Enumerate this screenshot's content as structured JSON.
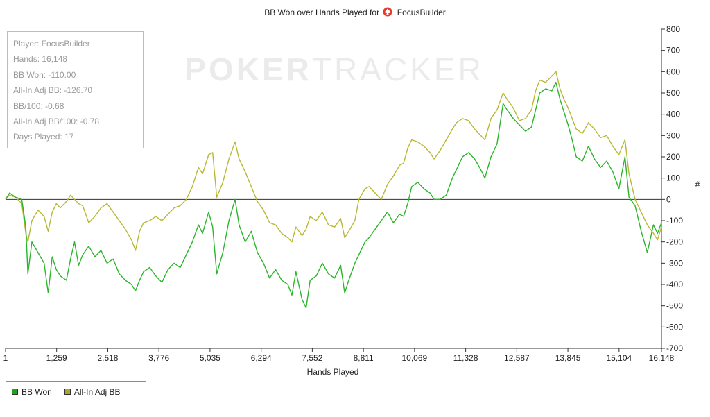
{
  "title": {
    "text": "BB Won over Hands Played for",
    "player": "FocusBuilder",
    "player_icon": "pokerstars-spade-icon"
  },
  "watermark": {
    "bold_part": "POKER",
    "light_part": "TRACKER"
  },
  "stats": [
    "Player: FocusBuilder",
    "Hands: 16,148",
    "BB Won: -110.00",
    "All-In Adj BB: -126.70",
    "BB/100: -0.68",
    "All-In Adj BB/100: -0.78",
    "Days Played: 17"
  ],
  "chart_data": {
    "type": "line",
    "title": "BB Won over Hands Played for FocusBuilder",
    "xlabel": "Hands Played",
    "ylabel": "#",
    "xlim": [
      1,
      16148
    ],
    "ylim": [
      -700,
      800
    ],
    "x_ticks": [
      1,
      1259,
      2518,
      3776,
      5035,
      6294,
      7552,
      8811,
      10069,
      11328,
      12587,
      13845,
      15104,
      16148
    ],
    "x_tick_labels": [
      "1",
      "1,259",
      "2,518",
      "3,776",
      "5,035",
      "6,294",
      "7,552",
      "8,811",
      "10,069",
      "11,328",
      "12,587",
      "13,845",
      "15,104",
      "16,148"
    ],
    "y_ticks": [
      -700,
      -600,
      -500,
      -400,
      -300,
      -200,
      -100,
      0,
      100,
      200,
      300,
      400,
      500,
      600,
      700,
      800
    ],
    "y_tick_labels": [
      "-700",
      "-600",
      "-500",
      "-400",
      "-300",
      "-200",
      "-100",
      "0",
      "100",
      "200",
      "300",
      "400",
      "500",
      "600",
      "700",
      "800"
    ],
    "y_axis_side": "right",
    "grid": false,
    "zero_line": true,
    "legend_position": "bottom-left",
    "series": [
      {
        "name": "BB Won",
        "color": "#2ab52a",
        "points": [
          [
            1,
            0
          ],
          [
            100,
            30
          ],
          [
            250,
            10
          ],
          [
            400,
            0
          ],
          [
            500,
            -130
          ],
          [
            550,
            -350
          ],
          [
            650,
            -200
          ],
          [
            800,
            -250
          ],
          [
            950,
            -300
          ],
          [
            1050,
            -440
          ],
          [
            1150,
            -270
          ],
          [
            1250,
            -330
          ],
          [
            1350,
            -360
          ],
          [
            1500,
            -380
          ],
          [
            1600,
            -280
          ],
          [
            1700,
            -200
          ],
          [
            1800,
            -310
          ],
          [
            1900,
            -260
          ],
          [
            2050,
            -220
          ],
          [
            2200,
            -270
          ],
          [
            2350,
            -240
          ],
          [
            2500,
            -300
          ],
          [
            2650,
            -280
          ],
          [
            2800,
            -350
          ],
          [
            2950,
            -380
          ],
          [
            3100,
            -400
          ],
          [
            3200,
            -430
          ],
          [
            3300,
            -380
          ],
          [
            3400,
            -340
          ],
          [
            3550,
            -320
          ],
          [
            3700,
            -360
          ],
          [
            3850,
            -390
          ],
          [
            4000,
            -330
          ],
          [
            4150,
            -300
          ],
          [
            4300,
            -320
          ],
          [
            4450,
            -260
          ],
          [
            4600,
            -200
          ],
          [
            4750,
            -120
          ],
          [
            4850,
            -160
          ],
          [
            5000,
            -60
          ],
          [
            5100,
            -130
          ],
          [
            5200,
            -350
          ],
          [
            5350,
            -250
          ],
          [
            5500,
            -100
          ],
          [
            5650,
            0
          ],
          [
            5750,
            -120
          ],
          [
            5900,
            -200
          ],
          [
            6050,
            -150
          ],
          [
            6200,
            -250
          ],
          [
            6350,
            -300
          ],
          [
            6500,
            -370
          ],
          [
            6650,
            -330
          ],
          [
            6800,
            -380
          ],
          [
            6950,
            -400
          ],
          [
            7050,
            -450
          ],
          [
            7150,
            -340
          ],
          [
            7300,
            -470
          ],
          [
            7400,
            -510
          ],
          [
            7500,
            -380
          ],
          [
            7650,
            -360
          ],
          [
            7800,
            -300
          ],
          [
            7950,
            -350
          ],
          [
            8100,
            -370
          ],
          [
            8250,
            -310
          ],
          [
            8350,
            -440
          ],
          [
            8450,
            -380
          ],
          [
            8600,
            -300
          ],
          [
            8700,
            -260
          ],
          [
            8850,
            -200
          ],
          [
            8950,
            -180
          ],
          [
            9100,
            -140
          ],
          [
            9250,
            -100
          ],
          [
            9400,
            -60
          ],
          [
            9550,
            -110
          ],
          [
            9700,
            -70
          ],
          [
            9800,
            -80
          ],
          [
            9900,
            -20
          ],
          [
            10000,
            60
          ],
          [
            10150,
            80
          ],
          [
            10300,
            50
          ],
          [
            10450,
            30
          ],
          [
            10550,
            0
          ],
          [
            10700,
            0
          ],
          [
            10850,
            20
          ],
          [
            11000,
            100
          ],
          [
            11100,
            140
          ],
          [
            11250,
            200
          ],
          [
            11400,
            220
          ],
          [
            11550,
            190
          ],
          [
            11700,
            140
          ],
          [
            11800,
            100
          ],
          [
            11950,
            200
          ],
          [
            12100,
            260
          ],
          [
            12250,
            450
          ],
          [
            12350,
            420
          ],
          [
            12500,
            380
          ],
          [
            12650,
            350
          ],
          [
            12800,
            320
          ],
          [
            12950,
            340
          ],
          [
            13050,
            420
          ],
          [
            13150,
            500
          ],
          [
            13300,
            520
          ],
          [
            13450,
            510
          ],
          [
            13550,
            550
          ],
          [
            13650,
            470
          ],
          [
            13750,
            410
          ],
          [
            13850,
            350
          ],
          [
            13950,
            280
          ],
          [
            14050,
            200
          ],
          [
            14200,
            180
          ],
          [
            14350,
            250
          ],
          [
            14500,
            190
          ],
          [
            14650,
            150
          ],
          [
            14800,
            180
          ],
          [
            14950,
            130
          ],
          [
            15100,
            50
          ],
          [
            15250,
            200
          ],
          [
            15350,
            10
          ],
          [
            15500,
            -30
          ],
          [
            15650,
            -150
          ],
          [
            15800,
            -250
          ],
          [
            15950,
            -120
          ],
          [
            16050,
            -160
          ],
          [
            16148,
            -110
          ]
        ]
      },
      {
        "name": "All-In Adj BB",
        "color": "#b8b832",
        "points": [
          [
            1,
            0
          ],
          [
            100,
            20
          ],
          [
            250,
            10
          ],
          [
            400,
            -20
          ],
          [
            500,
            -160
          ],
          [
            550,
            -200
          ],
          [
            650,
            -100
          ],
          [
            800,
            -50
          ],
          [
            950,
            -80
          ],
          [
            1050,
            -150
          ],
          [
            1150,
            -60
          ],
          [
            1250,
            -20
          ],
          [
            1350,
            -40
          ],
          [
            1500,
            -10
          ],
          [
            1600,
            20
          ],
          [
            1700,
            0
          ],
          [
            1800,
            -20
          ],
          [
            1900,
            -30
          ],
          [
            2050,
            -110
          ],
          [
            2200,
            -80
          ],
          [
            2350,
            -40
          ],
          [
            2500,
            -20
          ],
          [
            2650,
            -60
          ],
          [
            2800,
            -100
          ],
          [
            2950,
            -140
          ],
          [
            3100,
            -190
          ],
          [
            3200,
            -240
          ],
          [
            3300,
            -150
          ],
          [
            3400,
            -110
          ],
          [
            3550,
            -100
          ],
          [
            3700,
            -80
          ],
          [
            3850,
            -100
          ],
          [
            4000,
            -70
          ],
          [
            4150,
            -40
          ],
          [
            4300,
            -30
          ],
          [
            4450,
            0
          ],
          [
            4600,
            60
          ],
          [
            4750,
            150
          ],
          [
            4850,
            120
          ],
          [
            5000,
            210
          ],
          [
            5100,
            220
          ],
          [
            5200,
            10
          ],
          [
            5350,
            80
          ],
          [
            5500,
            190
          ],
          [
            5650,
            270
          ],
          [
            5750,
            190
          ],
          [
            5900,
            130
          ],
          [
            6050,
            60
          ],
          [
            6200,
            -10
          ],
          [
            6350,
            -50
          ],
          [
            6500,
            -110
          ],
          [
            6650,
            -120
          ],
          [
            6800,
            -160
          ],
          [
            6950,
            -180
          ],
          [
            7050,
            -200
          ],
          [
            7150,
            -130
          ],
          [
            7300,
            -170
          ],
          [
            7400,
            -140
          ],
          [
            7500,
            -80
          ],
          [
            7650,
            -100
          ],
          [
            7800,
            -60
          ],
          [
            7950,
            -120
          ],
          [
            8100,
            -130
          ],
          [
            8250,
            -90
          ],
          [
            8350,
            -180
          ],
          [
            8450,
            -150
          ],
          [
            8600,
            -100
          ],
          [
            8700,
            0
          ],
          [
            8850,
            50
          ],
          [
            8950,
            60
          ],
          [
            9100,
            30
          ],
          [
            9250,
            0
          ],
          [
            9400,
            70
          ],
          [
            9550,
            110
          ],
          [
            9700,
            160
          ],
          [
            9800,
            170
          ],
          [
            9900,
            240
          ],
          [
            10000,
            280
          ],
          [
            10150,
            270
          ],
          [
            10300,
            250
          ],
          [
            10450,
            220
          ],
          [
            10550,
            190
          ],
          [
            10700,
            230
          ],
          [
            10850,
            280
          ],
          [
            11000,
            330
          ],
          [
            11100,
            360
          ],
          [
            11250,
            380
          ],
          [
            11400,
            370
          ],
          [
            11550,
            330
          ],
          [
            11700,
            300
          ],
          [
            11800,
            280
          ],
          [
            11950,
            380
          ],
          [
            12100,
            420
          ],
          [
            12250,
            500
          ],
          [
            12350,
            470
          ],
          [
            12500,
            430
          ],
          [
            12650,
            370
          ],
          [
            12800,
            380
          ],
          [
            12950,
            420
          ],
          [
            13050,
            510
          ],
          [
            13150,
            560
          ],
          [
            13300,
            550
          ],
          [
            13450,
            580
          ],
          [
            13550,
            600
          ],
          [
            13650,
            520
          ],
          [
            13750,
            470
          ],
          [
            13850,
            430
          ],
          [
            13950,
            380
          ],
          [
            14050,
            330
          ],
          [
            14200,
            310
          ],
          [
            14350,
            360
          ],
          [
            14500,
            330
          ],
          [
            14650,
            290
          ],
          [
            14800,
            300
          ],
          [
            14950,
            250
          ],
          [
            15100,
            210
          ],
          [
            15250,
            280
          ],
          [
            15350,
            120
          ],
          [
            15500,
            0
          ],
          [
            15650,
            -60
          ],
          [
            15800,
            -120
          ],
          [
            15950,
            -160
          ],
          [
            16050,
            -190
          ],
          [
            16148,
            -130
          ]
        ]
      }
    ]
  }
}
